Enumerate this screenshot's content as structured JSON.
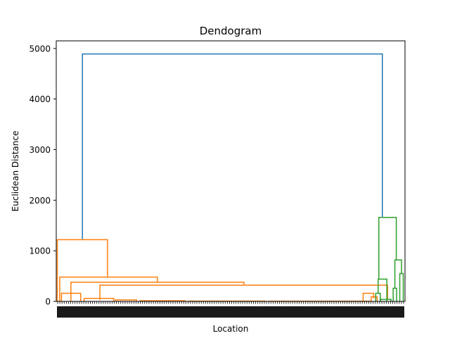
{
  "chart_data": {
    "type": "dendrogram",
    "title": "Dendogram",
    "xlabel": "Location",
    "ylabel": "Euclidean Distance",
    "ylim": [
      0,
      5150
    ],
    "xlim": [
      0,
      100
    ],
    "yticks": [
      0,
      1000,
      2000,
      3000,
      4000,
      5000
    ],
    "grid": false,
    "colors": {
      "root": "#1f77b4",
      "cluster_1": "#ff7f0e",
      "cluster_2": "#2ca02c",
      "axes": "#000000",
      "background": "#ffffff"
    },
    "links": [
      {
        "name": "link-root",
        "color": "root",
        "xl": 7.5,
        "xr": 93.5,
        "yb_l": 1230,
        "yb_r": 1670,
        "yt": 4890
      },
      {
        "name": "link-c1-a",
        "color": "cluster_1",
        "xl": 0.3,
        "xr": 14.7,
        "yb_l": 0,
        "yb_r": 490,
        "yt": 1220
      },
      {
        "name": "link-c1-b",
        "color": "cluster_1",
        "xl": 1.0,
        "xr": 29.0,
        "yb_l": 0,
        "yb_r": 390,
        "yt": 480
      },
      {
        "name": "link-c1-c",
        "color": "cluster_1",
        "xl": 4.2,
        "xr": 53.8,
        "yb_l": 0,
        "yb_r": 330,
        "yt": 380
      },
      {
        "name": "link-c1-d",
        "color": "cluster_1",
        "xl": 12.5,
        "xr": 95.0,
        "yb_l": 30,
        "yb_r": 30,
        "yt": 320
      },
      {
        "name": "link-c1-e",
        "color": "cluster_1",
        "xl": 1.5,
        "xr": 7.0,
        "yb_l": 0,
        "yb_r": 0,
        "yt": 160
      },
      {
        "name": "link-c1-f",
        "color": "cluster_1",
        "xl": 8.0,
        "xr": 16.5,
        "yb_l": 0,
        "yb_r": 0,
        "yt": 60
      },
      {
        "name": "link-c1-g",
        "color": "cluster_1",
        "xl": 17.0,
        "xr": 23.0,
        "yb_l": 0,
        "yb_r": 0,
        "yt": 30
      },
      {
        "name": "link-c1-h",
        "color": "cluster_1",
        "xl": 24.0,
        "xr": 37.0,
        "yb_l": 0,
        "yb_r": 0,
        "yt": 12
      },
      {
        "name": "link-c1-i",
        "color": "cluster_1",
        "xl": 38.0,
        "xr": 60.0,
        "yb_l": 0,
        "yb_r": 0,
        "yt": 6
      },
      {
        "name": "link-c1-j",
        "color": "cluster_1",
        "xl": 61.0,
        "xr": 90.0,
        "yb_l": 0,
        "yb_r": 0,
        "yt": 4
      },
      {
        "name": "link-c1-k",
        "color": "cluster_1",
        "xl": 88.0,
        "xr": 91.0,
        "yb_l": 0,
        "yb_r": 60,
        "yt": 160
      },
      {
        "name": "link-c1-l",
        "color": "cluster_1",
        "xl": 90.3,
        "xr": 92.0,
        "yb_l": 0,
        "yb_r": 0,
        "yt": 90
      },
      {
        "name": "link-c2-a",
        "color": "cluster_2",
        "xl": 92.5,
        "xr": 97.5,
        "yb_l": 440,
        "yb_r": 820,
        "yt": 1660
      },
      {
        "name": "link-c2-b",
        "color": "cluster_2",
        "xl": 92.3,
        "xr": 94.8,
        "yb_l": 150,
        "yb_r": 0,
        "yt": 440
      },
      {
        "name": "link-c2-c",
        "color": "cluster_2",
        "xl": 91.6,
        "xr": 92.9,
        "yb_l": 0,
        "yb_r": 0,
        "yt": 160
      },
      {
        "name": "link-c2-d",
        "color": "cluster_2",
        "xl": 97.1,
        "xr": 99.0,
        "yb_l": 260,
        "yb_r": 550,
        "yt": 820
      },
      {
        "name": "link-c2-e",
        "color": "cluster_2",
        "xl": 96.6,
        "xr": 97.6,
        "yb_l": 0,
        "yb_r": 0,
        "yt": 260
      },
      {
        "name": "link-c2-f",
        "color": "cluster_2",
        "xl": 98.5,
        "xr": 99.5,
        "yb_l": 0,
        "yb_r": 0,
        "yt": 550
      },
      {
        "name": "link-c2-g",
        "color": "cluster_2",
        "xl": 93.0,
        "xr": 96.0,
        "yb_l": 0,
        "yb_r": 0,
        "yt": 40
      }
    ]
  }
}
